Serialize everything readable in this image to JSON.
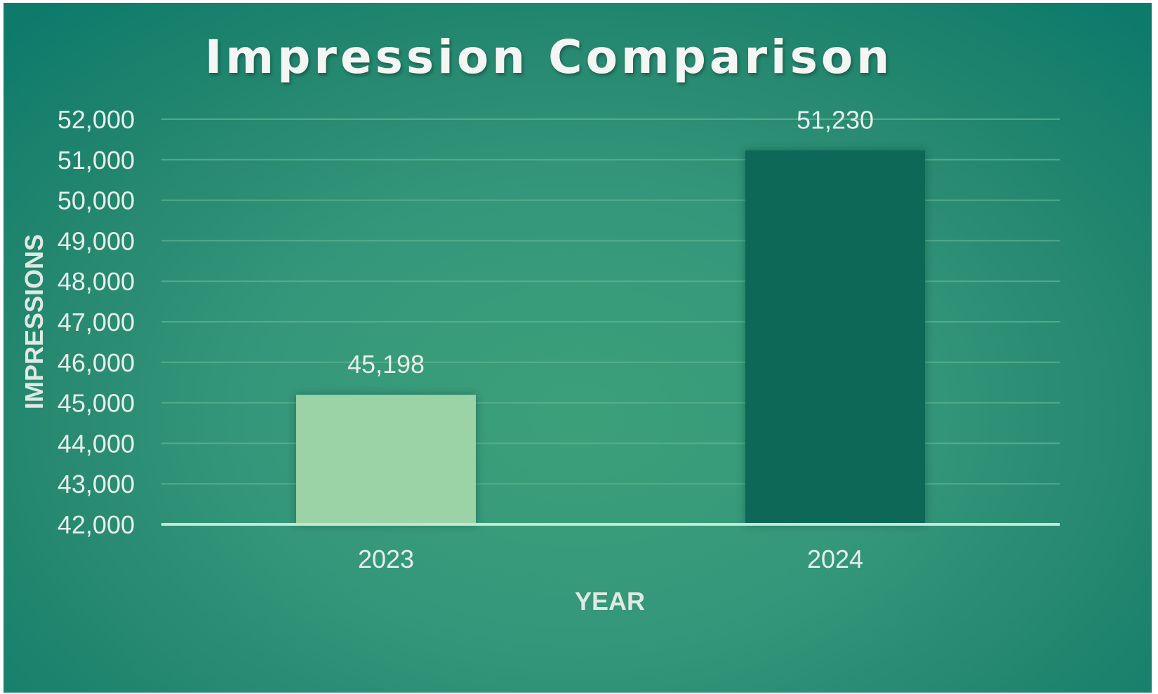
{
  "chart_data": {
    "type": "bar",
    "title": "Impression Comparison",
    "xlabel": "YEAR",
    "ylabel": "IMPRESSIONS",
    "categories": [
      "2023",
      "2024"
    ],
    "values": [
      45198,
      51230
    ],
    "data_labels": [
      "45,198",
      "51,230"
    ],
    "ylim": [
      42000,
      52000
    ],
    "yticks": [
      42000,
      43000,
      44000,
      45000,
      46000,
      47000,
      48000,
      49000,
      50000,
      51000,
      52000
    ],
    "ytick_labels": [
      "42,000",
      "43,000",
      "44,000",
      "45,000",
      "46,000",
      "47,000",
      "48,000",
      "49,000",
      "50,000",
      "51,000",
      "52,000"
    ],
    "grid": true,
    "legend": "none",
    "bar_colors": [
      "#9cd3a6",
      "#086758"
    ],
    "background_color": "#2f9478",
    "gridline_color": "#5fb590",
    "baseline_color": "#c5e6d3"
  }
}
